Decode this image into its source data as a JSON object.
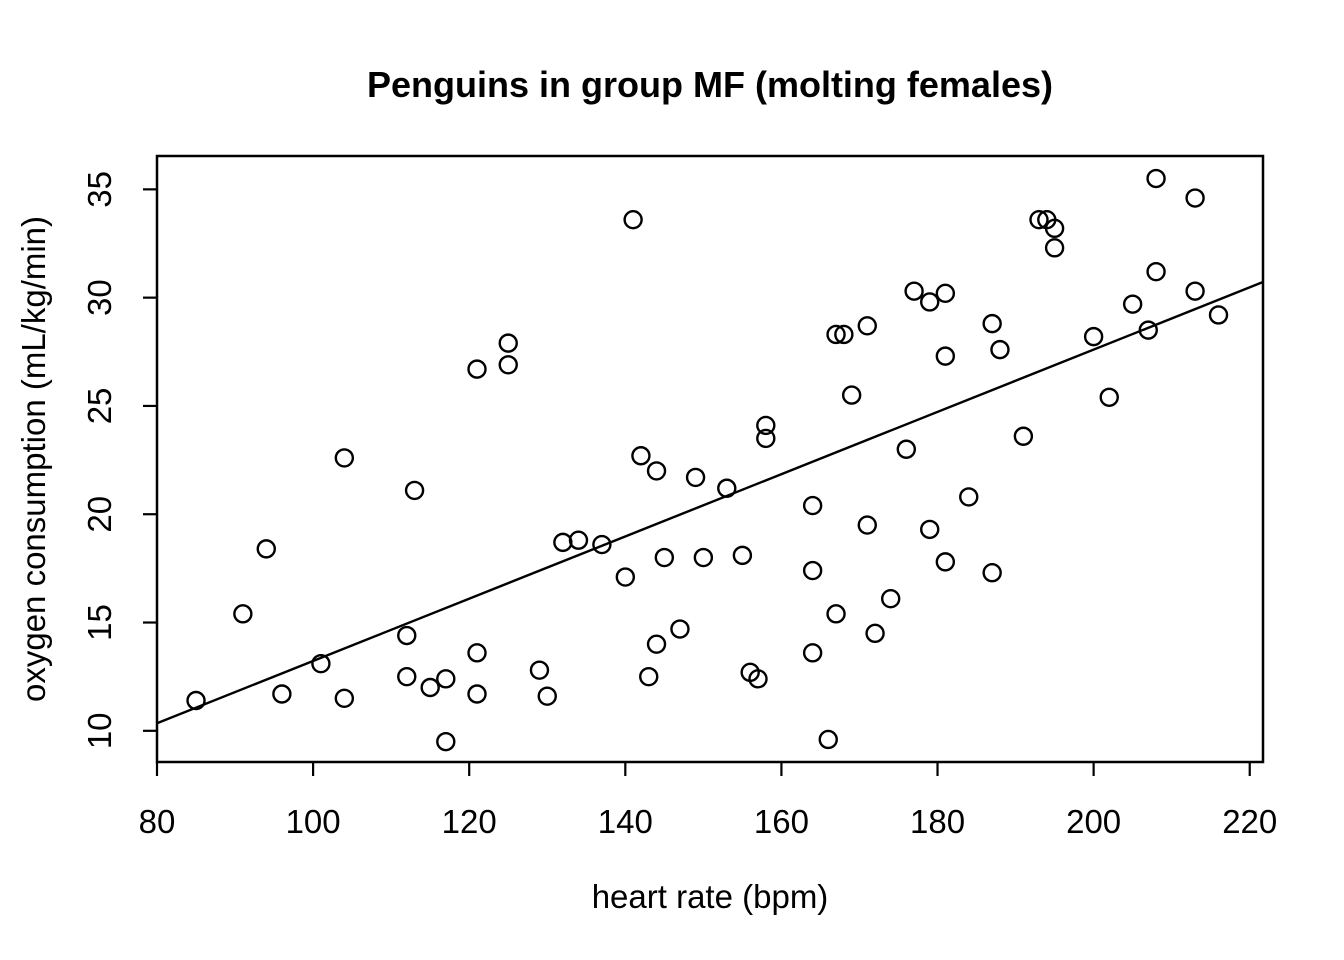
{
  "chart_data": {
    "type": "scatter",
    "title": "Penguins in group MF (molting females)",
    "xlabel": "heart rate (bpm)",
    "ylabel": "oxygen consumption (mL/kg/min)",
    "xlim": [
      80,
      221.7
    ],
    "ylim": [
      8.56,
      36.54
    ],
    "xticks": [
      80,
      100,
      120,
      140,
      160,
      180,
      200,
      220
    ],
    "yticks": [
      10,
      15,
      20,
      25,
      30,
      35
    ],
    "grid": false,
    "legend": "none",
    "marker": "open-circle",
    "colors": {
      "foreground": "#000000",
      "background": "#ffffff"
    },
    "points": [
      [
        85,
        11.4
      ],
      [
        91,
        15.4
      ],
      [
        94,
        18.4
      ],
      [
        96,
        11.7
      ],
      [
        101,
        13.1
      ],
      [
        104,
        22.6
      ],
      [
        104,
        11.5
      ],
      [
        112,
        14.4
      ],
      [
        112,
        12.5
      ],
      [
        113,
        21.1
      ],
      [
        115,
        12.0
      ],
      [
        117,
        12.4
      ],
      [
        117,
        9.5
      ],
      [
        121,
        26.7
      ],
      [
        121,
        13.6
      ],
      [
        121,
        11.7
      ],
      [
        125,
        27.9
      ],
      [
        125,
        26.9
      ],
      [
        129,
        12.8
      ],
      [
        130,
        11.6
      ],
      [
        132,
        18.7
      ],
      [
        134,
        18.8
      ],
      [
        137,
        18.6
      ],
      [
        140,
        17.1
      ],
      [
        141,
        33.6
      ],
      [
        142,
        22.7
      ],
      [
        143,
        12.5
      ],
      [
        144,
        22.0
      ],
      [
        144,
        14.0
      ],
      [
        145,
        18.0
      ],
      [
        147,
        14.7
      ],
      [
        149,
        21.7
      ],
      [
        150,
        18.0
      ],
      [
        153,
        21.2
      ],
      [
        155,
        18.1
      ],
      [
        156,
        12.7
      ],
      [
        157,
        12.4
      ],
      [
        158,
        24.1
      ],
      [
        158,
        23.5
      ],
      [
        164,
        20.4
      ],
      [
        164,
        17.4
      ],
      [
        164,
        13.6
      ],
      [
        166,
        9.6
      ],
      [
        167,
        28.3
      ],
      [
        168,
        28.3
      ],
      [
        167,
        15.4
      ],
      [
        169,
        25.5
      ],
      [
        171,
        28.7
      ],
      [
        171,
        19.5
      ],
      [
        172,
        14.5
      ],
      [
        174,
        16.1
      ],
      [
        176,
        23.0
      ],
      [
        177,
        30.3
      ],
      [
        179,
        29.8
      ],
      [
        179,
        19.3
      ],
      [
        181,
        30.2
      ],
      [
        181,
        27.3
      ],
      [
        181,
        17.8
      ],
      [
        184,
        20.8
      ],
      [
        187,
        28.8
      ],
      [
        187,
        17.3
      ],
      [
        188,
        27.6
      ],
      [
        191,
        23.6
      ],
      [
        193,
        33.6
      ],
      [
        194,
        33.6
      ],
      [
        195,
        33.2
      ],
      [
        195,
        32.3
      ],
      [
        200,
        28.2
      ],
      [
        202,
        25.4
      ],
      [
        205,
        29.7
      ],
      [
        207,
        28.5
      ],
      [
        208,
        35.5
      ],
      [
        208,
        31.2
      ],
      [
        213,
        34.6
      ],
      [
        213,
        30.3
      ],
      [
        216,
        29.2
      ]
    ],
    "regression_line": {
      "x1": 80,
      "y1": 10.35,
      "x2": 221.7,
      "y2": 30.72
    }
  }
}
